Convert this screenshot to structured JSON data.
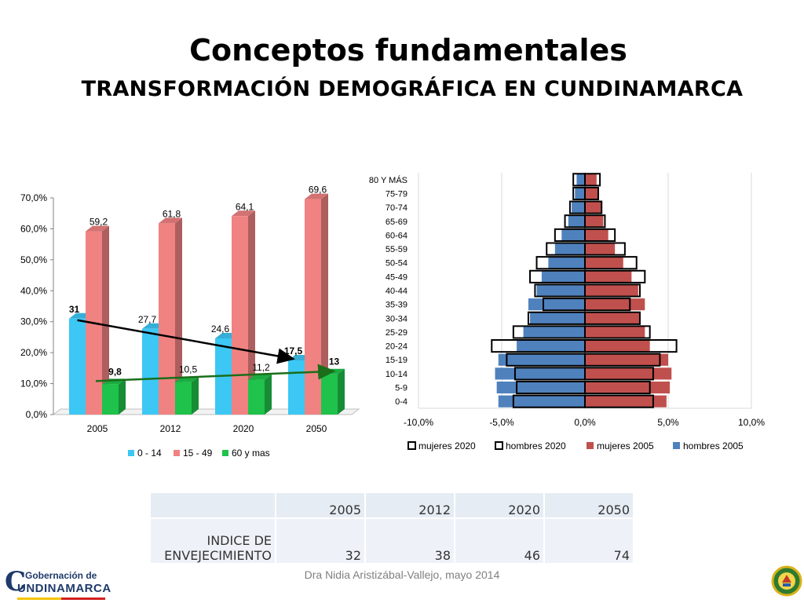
{
  "slide": {
    "title": "Conceptos fundamentales",
    "subtitle": "TRANSFORMACIÓN DEMOGRÁFICA EN CUNDINAMARCA",
    "footer": "Dra Nidia Aristizábal-Vallejo, mayo 2014",
    "logo_top": "Gobernación de",
    "logo_big": "C",
    "logo_main": "UNDINAMARCA"
  },
  "colors": {
    "age_0_14": "#3cc7f5",
    "age_15_49": "#f08282",
    "age_60_plus": "#1fc24a",
    "women": "#c0504d",
    "men": "#4f81bd",
    "trend_black": "#000000",
    "trend_green": "#1a6e1a"
  },
  "chart_data": [
    {
      "type": "bar",
      "categories": [
        "2005",
        "2012",
        "2020",
        "2050"
      ],
      "series": [
        {
          "name": "0 - 14",
          "values": [
            31,
            27.7,
            24.6,
            17.5
          ],
          "labels": [
            "31",
            "27,7",
            "24,6",
            "17,5"
          ]
        },
        {
          "name": "15 - 49",
          "values": [
            59.2,
            61.8,
            64.1,
            69.6
          ],
          "labels": [
            "59,2",
            "61,8",
            "64,1",
            "69,6"
          ]
        },
        {
          "name": "60 y mas",
          "values": [
            9.8,
            10.5,
            11.2,
            13
          ],
          "labels": [
            "9,8",
            "10,5",
            "11,2",
            "13"
          ]
        }
      ],
      "ylim": [
        0,
        70
      ],
      "yticks": [
        "0,0%",
        "10,0%",
        "20,0%",
        "30,0%",
        "40,0%",
        "50,0%",
        "60,0%",
        "70,0%"
      ],
      "legend": "bottom",
      "trend_arrows": [
        "0 - 14",
        "60 y mas"
      ]
    },
    {
      "type": "bar",
      "orientation": "horizontal",
      "categories": [
        "0-4",
        "5-9",
        "10-14",
        "15-19",
        "20-24",
        "25-29",
        "30-34",
        "35-39",
        "40-44",
        "45-49",
        "50-54",
        "55-59",
        "60-64",
        "65-69",
        "70-74",
        "75-79",
        "80 Y MÁS"
      ],
      "series": [
        {
          "name": "hombres 2005",
          "values": [
            -5.2,
            -5.3,
            -5.4,
            -5.2,
            -4.1,
            -3.7,
            -3.3,
            -3.4,
            -2.9,
            -2.6,
            -2.2,
            -1.8,
            -1.4,
            -1.0,
            -0.8,
            -0.6,
            -0.5
          ]
        },
        {
          "name": "mujeres 2005",
          "values": [
            4.9,
            5.1,
            5.2,
            5.0,
            3.9,
            3.6,
            3.3,
            3.6,
            3.2,
            2.8,
            2.3,
            1.8,
            1.4,
            1.1,
            1.0,
            0.8,
            0.7
          ]
        },
        {
          "name": "hombres 2020",
          "values": [
            -4.3,
            -4.1,
            -4.2,
            -4.7,
            -5.6,
            -4.3,
            -3.4,
            -2.5,
            -3.0,
            -3.3,
            -2.9,
            -2.3,
            -1.8,
            -1.2,
            -0.9,
            -0.7,
            -0.7
          ]
        },
        {
          "name": "mujeres 2020",
          "values": [
            4.1,
            3.9,
            4.1,
            4.5,
            5.5,
            3.9,
            3.3,
            2.7,
            3.3,
            3.6,
            3.1,
            2.4,
            1.8,
            1.2,
            1.0,
            0.8,
            0.9
          ]
        }
      ],
      "xlim": [
        -10,
        10
      ],
      "xticks": [
        "-10,0%",
        "-5,0%",
        "0,0%",
        "5,0%",
        "10,0%"
      ],
      "legend": "bottom"
    }
  ],
  "table": {
    "years": [
      "2005",
      "2012",
      "2020",
      "2050"
    ],
    "row_label_line1": "INDICE DE",
    "row_label_line2": "ENVEJECIMIENTO",
    "values": [
      "32",
      "38",
      "46",
      "74"
    ]
  }
}
